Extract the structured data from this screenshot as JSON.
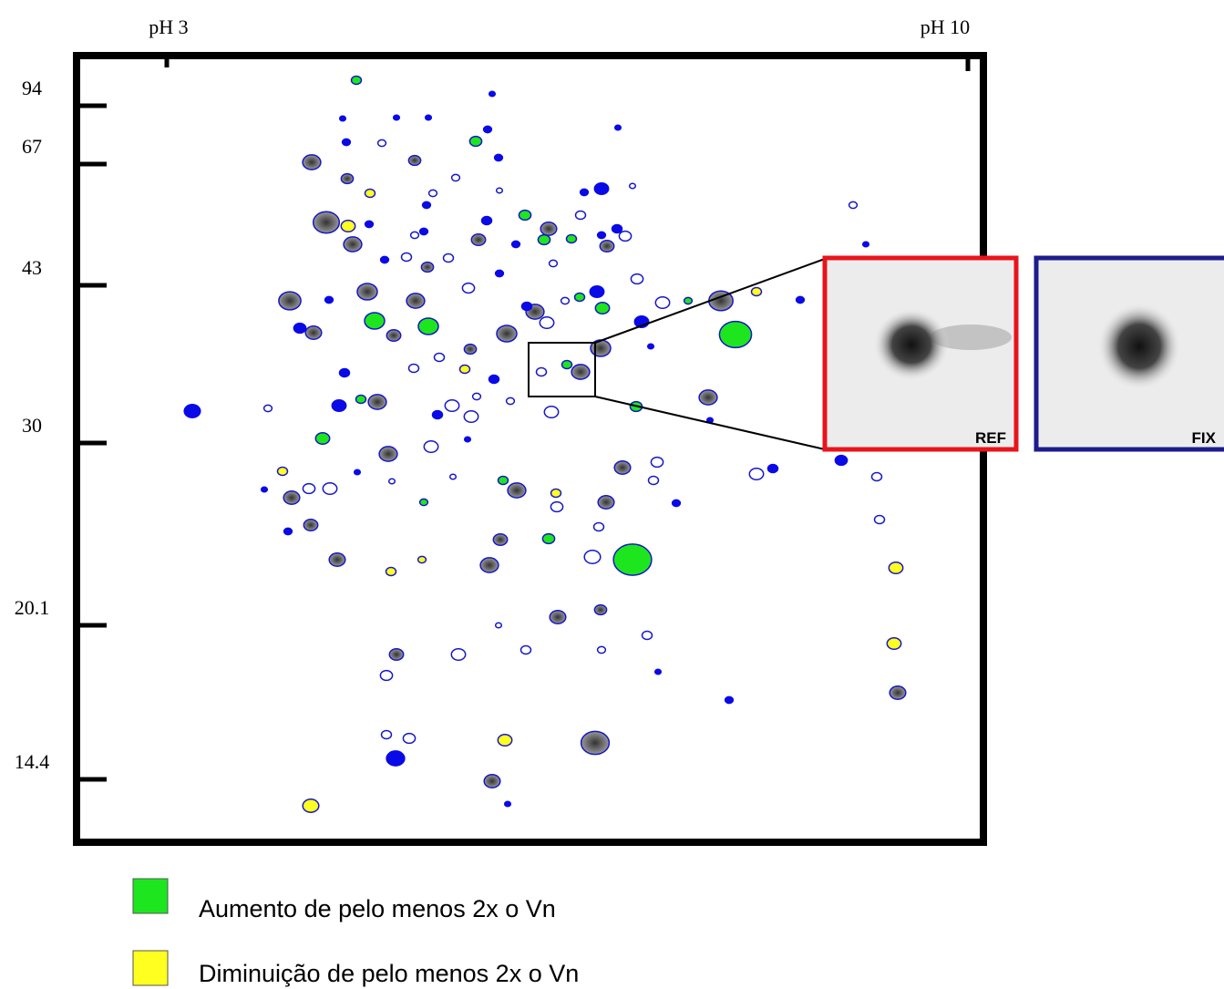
{
  "axis": {
    "ph_left": "pH 3",
    "ph_right": "pH 10",
    "mw": [
      "94",
      "67",
      "43",
      "30",
      "20.1",
      "14.4"
    ]
  },
  "insets": {
    "ref": "REF",
    "fix": "FIX"
  },
  "legend": [
    "Aumento de pelo menos 2x  o Vn",
    "Diminuição de pelo menos 2x o Vn"
  ]
}
